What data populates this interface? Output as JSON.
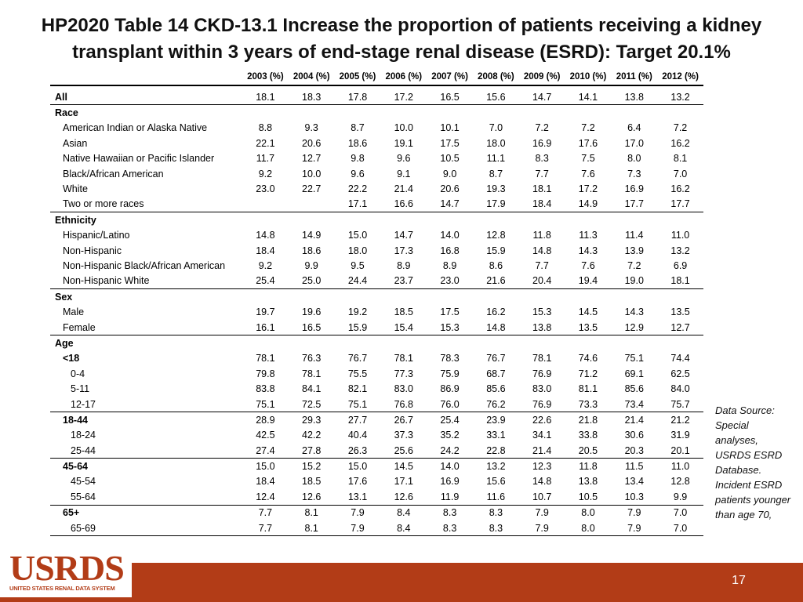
{
  "title": {
    "line1": "HP2020 Table 14 CKD-13.1 Increase the proportion of patients receiving a kidney",
    "line2": "transplant within 3 years of end-stage renal disease (ESRD): Target 20.1%"
  },
  "table": {
    "columns": [
      "2003 (%)",
      "2004 (%)",
      "2005 (%)",
      "2006 (%)",
      "2007 (%)",
      "2008 (%)",
      "2009 (%)",
      "2010 (%)",
      "2011 (%)",
      "2012 (%)"
    ],
    "rows": [
      {
        "label": "All",
        "level": "lv0",
        "sep": true,
        "first": true,
        "values": [
          "18.1",
          "18.3",
          "17.8",
          "17.2",
          "16.5",
          "15.6",
          "14.7",
          "14.1",
          "13.8",
          "13.2"
        ]
      },
      {
        "label": "Race",
        "level": "lv0",
        "values": [
          "",
          "",
          "",
          "",
          "",
          "",
          "",
          "",
          "",
          ""
        ]
      },
      {
        "label": "American Indian or Alaska Native",
        "level": "lv1",
        "values": [
          "8.8",
          "9.3",
          "8.7",
          "10.0",
          "10.1",
          "7.0",
          "7.2",
          "7.2",
          "6.4",
          "7.2"
        ]
      },
      {
        "label": "Asian",
        "level": "lv1",
        "values": [
          "22.1",
          "20.6",
          "18.6",
          "19.1",
          "17.5",
          "18.0",
          "16.9",
          "17.6",
          "17.0",
          "16.2"
        ]
      },
      {
        "label": "Native Hawaiian or Pacific Islander",
        "level": "lv1",
        "values": [
          "11.7",
          "12.7",
          "9.8",
          "9.6",
          "10.5",
          "11.1",
          "8.3",
          "7.5",
          "8.0",
          "8.1"
        ]
      },
      {
        "label": "Black/African American",
        "level": "lv1",
        "values": [
          "9.2",
          "10.0",
          "9.6",
          "9.1",
          "9.0",
          "8.7",
          "7.7",
          "7.6",
          "7.3",
          "7.0"
        ]
      },
      {
        "label": "White",
        "level": "lv1",
        "values": [
          "23.0",
          "22.7",
          "22.2",
          "21.4",
          "20.6",
          "19.3",
          "18.1",
          "17.2",
          "16.9",
          "16.2"
        ]
      },
      {
        "label": "Two or more races",
        "level": "lv1",
        "sep": true,
        "values": [
          "",
          "",
          "17.1",
          "16.6",
          "14.7",
          "17.9",
          "18.4",
          "14.9",
          "17.7",
          "17.7"
        ]
      },
      {
        "label": "Ethnicity",
        "level": "lv0",
        "values": [
          "",
          "",
          "",
          "",
          "",
          "",
          "",
          "",
          "",
          ""
        ]
      },
      {
        "label": "Hispanic/Latino",
        "level": "lv1",
        "values": [
          "14.8",
          "14.9",
          "15.0",
          "14.7",
          "14.0",
          "12.8",
          "11.8",
          "11.3",
          "11.4",
          "11.0"
        ]
      },
      {
        "label": "Non-Hispanic",
        "level": "lv1",
        "values": [
          "18.4",
          "18.6",
          "18.0",
          "17.3",
          "16.8",
          "15.9",
          "14.8",
          "14.3",
          "13.9",
          "13.2"
        ]
      },
      {
        "label": "Non-Hispanic Black/African American",
        "level": "lv1",
        "values": [
          "9.2",
          "9.9",
          "9.5",
          "8.9",
          "8.9",
          "8.6",
          "7.7",
          "7.6",
          "7.2",
          "6.9"
        ]
      },
      {
        "label": "Non-Hispanic White",
        "level": "lv1",
        "sep": true,
        "values": [
          "25.4",
          "25.0",
          "24.4",
          "23.7",
          "23.0",
          "21.6",
          "20.4",
          "19.4",
          "19.0",
          "18.1"
        ]
      },
      {
        "label": "Sex",
        "level": "lv0",
        "values": [
          "",
          "",
          "",
          "",
          "",
          "",
          "",
          "",
          "",
          ""
        ]
      },
      {
        "label": "Male",
        "level": "lv1",
        "values": [
          "19.7",
          "19.6",
          "19.2",
          "18.5",
          "17.5",
          "16.2",
          "15.3",
          "14.5",
          "14.3",
          "13.5"
        ]
      },
      {
        "label": "Female",
        "level": "lv1",
        "sep": true,
        "values": [
          "16.1",
          "16.5",
          "15.9",
          "15.4",
          "15.3",
          "14.8",
          "13.8",
          "13.5",
          "12.9",
          "12.7"
        ]
      },
      {
        "label": "Age",
        "level": "lv0",
        "values": [
          "",
          "",
          "",
          "",
          "",
          "",
          "",
          "",
          "",
          ""
        ]
      },
      {
        "label": "<18",
        "level": "lv1b",
        "values": [
          "78.1",
          "76.3",
          "76.7",
          "78.1",
          "78.3",
          "76.7",
          "78.1",
          "74.6",
          "75.1",
          "74.4"
        ]
      },
      {
        "label": "0-4",
        "level": "lv2",
        "values": [
          "79.8",
          "78.1",
          "75.5",
          "77.3",
          "75.9",
          "68.7",
          "76.9",
          "71.2",
          "69.1",
          "62.5"
        ]
      },
      {
        "label": "5-11",
        "level": "lv2",
        "values": [
          "83.8",
          "84.1",
          "82.1",
          "83.0",
          "86.9",
          "85.6",
          "83.0",
          "81.1",
          "85.6",
          "84.0"
        ]
      },
      {
        "label": "12-17",
        "level": "lv2",
        "sep": true,
        "values": [
          "75.1",
          "72.5",
          "75.1",
          "76.8",
          "76.0",
          "76.2",
          "76.9",
          "73.3",
          "73.4",
          "75.7"
        ]
      },
      {
        "label": "18-44",
        "level": "lv1b",
        "values": [
          "28.9",
          "29.3",
          "27.7",
          "26.7",
          "25.4",
          "23.9",
          "22.6",
          "21.8",
          "21.4",
          "21.2"
        ]
      },
      {
        "label": "18-24",
        "level": "lv2",
        "values": [
          "42.5",
          "42.2",
          "40.4",
          "37.3",
          "35.2",
          "33.1",
          "34.1",
          "33.8",
          "30.6",
          "31.9"
        ]
      },
      {
        "label": "25-44",
        "level": "lv2",
        "sep": true,
        "values": [
          "27.4",
          "27.8",
          "26.3",
          "25.6",
          "24.2",
          "22.8",
          "21.4",
          "20.5",
          "20.3",
          "20.1"
        ]
      },
      {
        "label": "45-64",
        "level": "lv1b",
        "values": [
          "15.0",
          "15.2",
          "15.0",
          "14.5",
          "14.0",
          "13.2",
          "12.3",
          "11.8",
          "11.5",
          "11.0"
        ]
      },
      {
        "label": "45-54",
        "level": "lv2",
        "values": [
          "18.4",
          "18.5",
          "17.6",
          "17.1",
          "16.9",
          "15.6",
          "14.8",
          "13.8",
          "13.4",
          "12.8"
        ]
      },
      {
        "label": "55-64",
        "level": "lv2",
        "sep": true,
        "values": [
          "12.4",
          "12.6",
          "13.1",
          "12.6",
          "11.9",
          "11.6",
          "10.7",
          "10.5",
          "10.3",
          "9.9"
        ]
      },
      {
        "label": "65+",
        "level": "lv1b",
        "values": [
          "7.7",
          "8.1",
          "7.9",
          "8.4",
          "8.3",
          "8.3",
          "7.9",
          "8.0",
          "7.9",
          "7.0"
        ]
      },
      {
        "label": "65-69",
        "level": "lv2",
        "sep": true,
        "values": [
          "7.7",
          "8.1",
          "7.9",
          "8.4",
          "8.3",
          "8.3",
          "7.9",
          "8.0",
          "7.9",
          "7.0"
        ]
      }
    ]
  },
  "source_note": "Data Source: Special analyses, USRDS ESRD Database. Incident ESRD patients younger than age 70,",
  "footer": {
    "logo_text": "USRDS",
    "logo_subtext": "UNITED STATES RENAL DATA SYSTEM",
    "page_number": "17"
  },
  "colors": {
    "footer_bar": "#b23c17",
    "logo": "#b23c17"
  }
}
